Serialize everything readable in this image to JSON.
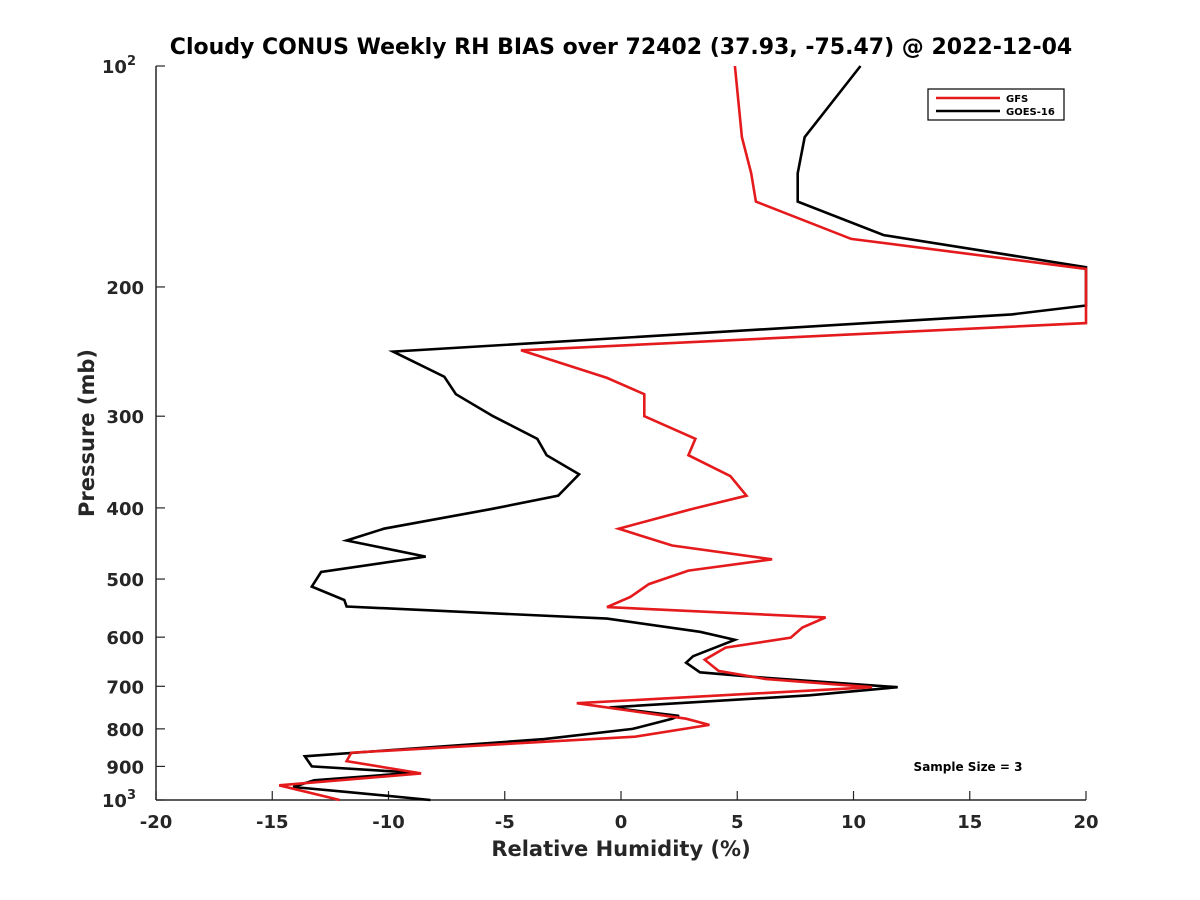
{
  "chart_data": {
    "type": "line",
    "title": "Cloudy CONUS Weekly RH BIAS over 72402 (37.93, -75.47) @ 2022-12-04",
    "xlabel": "Relative Humidity (%)",
    "ylabel": "Pressure (mb)",
    "xlim": [
      -20,
      20
    ],
    "ylim": [
      100,
      1000
    ],
    "y_scale": "log",
    "y_reversed": true,
    "grid": false,
    "legend_position": "top-right",
    "x_ticks": [
      "-20",
      "-15",
      "-10",
      "-5",
      "0",
      "5",
      "10",
      "15",
      "20"
    ],
    "y_ticks": [
      {
        "value": 100,
        "label": "10",
        "exp": "2"
      },
      {
        "value": 200,
        "label": "200",
        "exp": ""
      },
      {
        "value": 300,
        "label": "300",
        "exp": ""
      },
      {
        "value": 400,
        "label": "400",
        "exp": ""
      },
      {
        "value": 500,
        "label": "500",
        "exp": ""
      },
      {
        "value": 600,
        "label": "600",
        "exp": ""
      },
      {
        "value": 700,
        "label": "700",
        "exp": ""
      },
      {
        "value": 800,
        "label": "800",
        "exp": ""
      },
      {
        "value": 900,
        "label": "900",
        "exp": ""
      },
      {
        "value": 1000,
        "label": "10",
        "exp": "3"
      }
    ],
    "annotation": "Sample Size = 3",
    "series": [
      {
        "name": "GFS",
        "color": "#e41a1c",
        "points": [
          [
            4.9,
            100
          ],
          [
            5.2,
            125
          ],
          [
            5.6,
            140
          ],
          [
            5.8,
            153
          ],
          [
            9.9,
            172
          ],
          [
            20.0,
            189
          ],
          [
            20.0,
            224
          ],
          [
            -4.3,
            244
          ],
          [
            -0.6,
            266
          ],
          [
            1.0,
            280
          ],
          [
            1.0,
            300
          ],
          [
            3.2,
            322
          ],
          [
            2.9,
            339
          ],
          [
            4.7,
            362
          ],
          [
            5.4,
            385
          ],
          [
            3.1,
            401
          ],
          [
            -0.1,
            427
          ],
          [
            2.2,
            450
          ],
          [
            6.5,
            470
          ],
          [
            2.9,
            487
          ],
          [
            1.2,
            508
          ],
          [
            0.4,
            529
          ],
          [
            -0.6,
            546
          ],
          [
            8.8,
            564
          ],
          [
            7.8,
            582
          ],
          [
            7.3,
            601
          ],
          [
            4.5,
            620
          ],
          [
            3.6,
            644
          ],
          [
            4.2,
            667
          ],
          [
            6.2,
            684
          ],
          [
            10.8,
            702
          ],
          [
            -1.9,
            738
          ],
          [
            2.8,
            775
          ],
          [
            3.8,
            790
          ],
          [
            0.6,
            820
          ],
          [
            -11.6,
            862
          ],
          [
            -11.8,
            885
          ],
          [
            -8.6,
            920
          ],
          [
            -14.7,
            955
          ],
          [
            -12.1,
            1000
          ]
        ]
      },
      {
        "name": "GOES-16",
        "color": "#000000",
        "points": [
          [
            10.3,
            100
          ],
          [
            7.9,
            125
          ],
          [
            7.6,
            140
          ],
          [
            7.6,
            153
          ],
          [
            11.3,
            170
          ],
          [
            20.0,
            188
          ],
          [
            20.0,
            212
          ],
          [
            16.8,
            218
          ],
          [
            -9.8,
            245
          ],
          [
            -7.6,
            265
          ],
          [
            -7.1,
            280
          ],
          [
            -5.5,
            300
          ],
          [
            -3.6,
            322
          ],
          [
            -3.2,
            339
          ],
          [
            -1.8,
            360
          ],
          [
            -2.7,
            385
          ],
          [
            -5.5,
            401
          ],
          [
            -10.2,
            427
          ],
          [
            -11.8,
            443
          ],
          [
            -8.4,
            466
          ],
          [
            -12.9,
            489
          ],
          [
            -13.3,
            512
          ],
          [
            -11.9,
            534
          ],
          [
            -11.8,
            545
          ],
          [
            -0.6,
            566
          ],
          [
            3.4,
            590
          ],
          [
            4.9,
            605
          ],
          [
            3.1,
            637
          ],
          [
            2.8,
            650
          ],
          [
            3.4,
            670
          ],
          [
            5.8,
            680
          ],
          [
            11.9,
            702
          ],
          [
            8.1,
            720
          ],
          [
            -0.5,
            748
          ],
          [
            2.5,
            768
          ],
          [
            2.2,
            775
          ],
          [
            0.5,
            800
          ],
          [
            -3.3,
            826
          ],
          [
            -13.6,
            872
          ],
          [
            -13.3,
            900
          ],
          [
            -8.9,
            918
          ],
          [
            -13.2,
            940
          ],
          [
            -14.1,
            960
          ],
          [
            -11.8,
            975
          ],
          [
            -8.2,
            1000
          ]
        ]
      }
    ]
  }
}
